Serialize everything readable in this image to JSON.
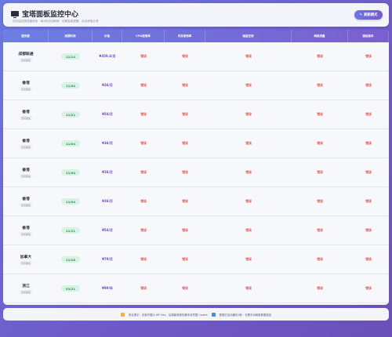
{
  "header": {
    "title": "宝塔面板监控中心",
    "subtitle": "实时监控服务器状态 · 每5秒自动刷新 · 到期智能提醒 · 自动获取计费",
    "refresh_label": "刷新模式",
    "refresh_icon": "pencil-icon"
  },
  "columns": [
    "服务器",
    "到期时间",
    "价格",
    "CPU使用率",
    "内存使用率",
    "磁盘空间",
    "网络流量",
    "面板版本"
  ],
  "rows": [
    {
      "location": "成都联通",
      "sub": "宝塔面板",
      "expire": "11/14",
      "price": "¥359.4/月",
      "cpu": "错误",
      "mem": "错误",
      "disk": "错误",
      "net": "错误",
      "ver": "错误"
    },
    {
      "location": "香港",
      "sub": "宝塔面板",
      "expire": "11/04",
      "price": "¥36/月",
      "cpu": "错误",
      "mem": "错误",
      "disk": "错误",
      "net": "错误",
      "ver": "错误"
    },
    {
      "location": "香港",
      "sub": "宝塔面板",
      "expire": "11/21",
      "price": "¥54/月",
      "cpu": "错误",
      "mem": "错误",
      "disk": "错误",
      "net": "错误",
      "ver": "错误"
    },
    {
      "location": "香港",
      "sub": "宝塔面板",
      "expire": "11/04",
      "price": "¥36/月",
      "cpu": "错误",
      "mem": "错误",
      "disk": "错误",
      "net": "错误",
      "ver": "错误"
    },
    {
      "location": "香港",
      "sub": "宝塔面板",
      "expire": "11/04",
      "price": "¥36/月",
      "cpu": "错误",
      "mem": "错误",
      "disk": "错误",
      "net": "错误",
      "ver": "错误"
    },
    {
      "location": "香港",
      "sub": "宝塔面板",
      "expire": "11/04",
      "price": "¥36/月",
      "cpu": "错误",
      "mem": "错误",
      "disk": "错误",
      "net": "错误",
      "ver": "错误"
    },
    {
      "location": "香港",
      "sub": "宝塔面板",
      "expire": "11/21",
      "price": "¥54/月",
      "cpu": "错误",
      "mem": "错误",
      "disk": "错误",
      "net": "错误",
      "ver": "错误"
    },
    {
      "location": "加拿大",
      "sub": "宝塔面板",
      "expire": "11/16",
      "price": "¥79/月",
      "cpu": "错误",
      "mem": "错误",
      "disk": "错误",
      "net": "错误",
      "ver": "错误"
    },
    {
      "location": "浙江",
      "sub": "宝塔面板",
      "expire": "03/21",
      "price": "¥99/年",
      "cpu": "错误",
      "mem": "错误",
      "disk": "错误",
      "net": "错误",
      "ver": "错误"
    }
  ],
  "footer": {
    "warning_text": "安全提示：页面不展示 API Key，后端使用服务器本地凭据 Cookie",
    "info_text": "数据已自动缓存5秒 · 无需手动刷新数据信息"
  },
  "colors": {
    "accent": "#6c7ee4",
    "error": "#e05a55",
    "price": "#7246c8",
    "expire_bg": "#d7f3e2"
  }
}
